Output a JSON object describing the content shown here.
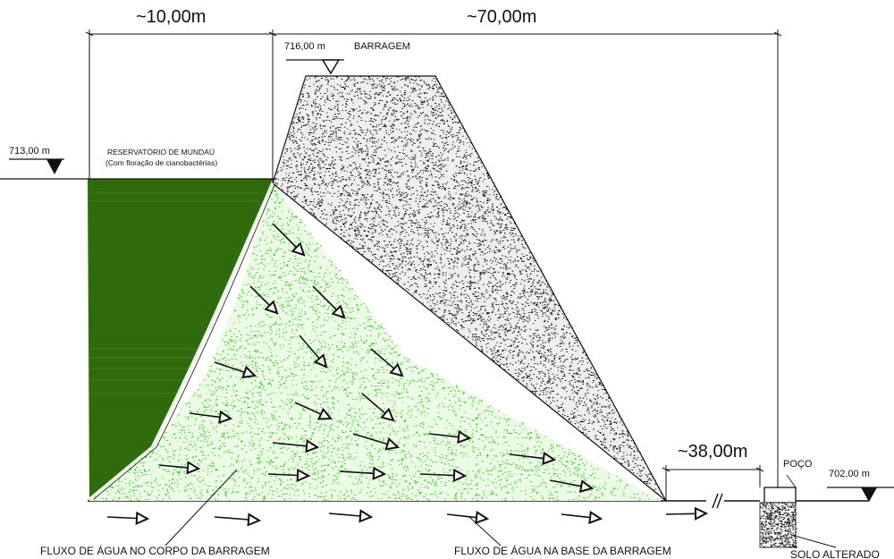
{
  "dimensions": {
    "reservoir_width": "~10,00m",
    "dam_width": "~70,00m",
    "downstream_distance": "~38,00m"
  },
  "elevations": {
    "crest": "716,00 m",
    "reservoir": "713,00 m",
    "downstream": "702,00 m"
  },
  "labels": {
    "dam": "BARRAGEM",
    "reservoir_title": "RESERVATÓRIO DE MUNDAÚ",
    "reservoir_subtitle": "(Com floração de cianobactérias)",
    "well": "POÇO",
    "body_flow": "FLUXO DE ÁGUA NO CORPO DA BARRAGEM",
    "base_flow": "FLUXO DE ÁGUA NA BASE DA BARRAGEM",
    "altered_soil": "SOLO ALTERADO"
  },
  "colors": {
    "reservoir": "#2f6a0c",
    "seepage_dots": "#35c71f",
    "fill_dots": "#111111",
    "lines": "#111111"
  }
}
